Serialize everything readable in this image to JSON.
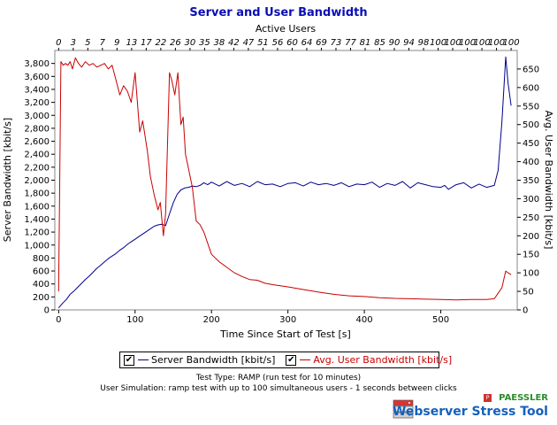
{
  "chart_data": {
    "type": "line",
    "title": "Server and User Bandwidth",
    "xlabel": "Time Since Start of Test [s]",
    "ylabel": "Server Bandwidth [kbit/s]",
    "y2label": "Avg. User Bandwidth [kbit/s]",
    "top_axis_label": "Active Users",
    "xlim": [
      -5,
      600
    ],
    "ylim": [
      0,
      4000
    ],
    "y2lim": [
      0,
      700
    ],
    "x_ticks": [
      "0",
      "100",
      "200",
      "300",
      "400",
      "500"
    ],
    "y_ticks": [
      "0",
      "200",
      "400",
      "600",
      "800",
      "1,000",
      "1,200",
      "1,400",
      "1,600",
      "1,800",
      "2,000",
      "2,200",
      "2,400",
      "2,600",
      "2,800",
      "3,000",
      "3,200",
      "3,400",
      "3,600",
      "3,800"
    ],
    "y2_ticks": [
      "0",
      "50",
      "100",
      "150",
      "200",
      "250",
      "300",
      "350",
      "400",
      "450",
      "500",
      "550",
      "600",
      "650"
    ],
    "top_ticks": [
      "0",
      "3",
      "5",
      "7",
      "9",
      "13",
      "17",
      "22",
      "26",
      "30",
      "35",
      "38",
      "42",
      "47",
      "51",
      "56",
      "60",
      "64",
      "69",
      "73",
      "77",
      "81",
      "85",
      "90",
      "94",
      "98",
      "100",
      "100",
      "100",
      "100",
      "100",
      "100"
    ],
    "grid": false,
    "legend_position": "bottom",
    "series": [
      {
        "name": "Server Bandwidth [kbit/s]",
        "axis": "left",
        "color": "#00008b",
        "x": [
          0,
          5,
          10,
          15,
          20,
          25,
          30,
          35,
          40,
          45,
          50,
          55,
          60,
          65,
          70,
          75,
          80,
          85,
          90,
          95,
          100,
          105,
          110,
          115,
          120,
          125,
          130,
          135,
          140,
          145,
          150,
          155,
          160,
          165,
          170,
          175,
          180,
          185,
          190,
          195,
          200,
          210,
          220,
          230,
          240,
          250,
          260,
          270,
          280,
          290,
          300,
          310,
          320,
          330,
          340,
          350,
          360,
          370,
          380,
          390,
          400,
          410,
          420,
          430,
          440,
          450,
          460,
          470,
          480,
          490,
          500,
          505,
          510,
          520,
          530,
          540,
          550,
          560,
          570,
          575,
          580,
          585,
          588,
          592
        ],
        "values": [
          30,
          100,
          160,
          240,
          290,
          350,
          410,
          470,
          520,
          580,
          640,
          690,
          740,
          790,
          830,
          870,
          920,
          960,
          1010,
          1050,
          1090,
          1130,
          1170,
          1210,
          1250,
          1290,
          1310,
          1320,
          1300,
          1480,
          1650,
          1780,
          1850,
          1880,
          1890,
          1910,
          1900,
          1920,
          1960,
          1930,
          1970,
          1910,
          1980,
          1920,
          1950,
          1900,
          1980,
          1930,
          1940,
          1900,
          1950,
          1960,
          1910,
          1970,
          1930,
          1950,
          1920,
          1960,
          1900,
          1940,
          1930,
          1970,
          1890,
          1950,
          1920,
          1980,
          1880,
          1960,
          1930,
          1900,
          1890,
          1920,
          1860,
          1930,
          1960,
          1880,
          1940,
          1890,
          1920,
          2150,
          2900,
          3900,
          3500,
          3150
        ]
      },
      {
        "name": "Avg. User Bandwidth [kbit/s]",
        "axis": "right",
        "color": "#c80000",
        "x": [
          0,
          3,
          6,
          9,
          12,
          15,
          18,
          22,
          26,
          30,
          35,
          40,
          45,
          50,
          55,
          60,
          65,
          70,
          75,
          80,
          85,
          90,
          95,
          100,
          103,
          106,
          110,
          113,
          116,
          120,
          125,
          130,
          133,
          137,
          140,
          145,
          148,
          152,
          156,
          160,
          163,
          166,
          170,
          175,
          180,
          185,
          190,
          195,
          200,
          210,
          220,
          230,
          240,
          250,
          260,
          270,
          280,
          290,
          300,
          320,
          340,
          360,
          380,
          400,
          420,
          440,
          460,
          480,
          500,
          520,
          540,
          560,
          570,
          575,
          580,
          585,
          588,
          592
        ],
        "values": [
          50,
          670,
          660,
          665,
          660,
          670,
          650,
          680,
          665,
          655,
          670,
          660,
          665,
          655,
          660,
          665,
          650,
          660,
          620,
          580,
          605,
          590,
          560,
          640,
          560,
          480,
          510,
          470,
          430,
          360,
          310,
          270,
          290,
          200,
          260,
          640,
          620,
          580,
          640,
          500,
          520,
          420,
          380,
          330,
          240,
          230,
          210,
          180,
          150,
          130,
          115,
          100,
          90,
          82,
          80,
          72,
          68,
          65,
          62,
          55,
          48,
          42,
          38,
          36,
          33,
          31,
          30,
          29,
          28,
          27,
          28,
          28,
          30,
          45,
          60,
          105,
          100,
          95
        ]
      }
    ]
  },
  "footer": {
    "test_type": "Test Type: RAMP (run test for 10 minutes)",
    "user_simulation": "User Simulation: ramp test with up to 100 simultaneous users - 1 seconds between clicks"
  },
  "brand": {
    "company": "PAESSLER",
    "product": "Webserver Stress Tool"
  },
  "colors": {
    "title": "#0a0fb4",
    "server_series": "#00008b",
    "user_series": "#c80000"
  }
}
